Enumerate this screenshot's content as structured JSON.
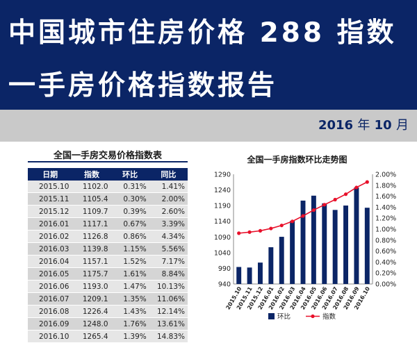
{
  "header": {
    "title_line1": "中国城市住房价格 288 指数",
    "title_line2": "一手房价格指数报告",
    "date_year": "2016",
    "date_year_unit": "年",
    "date_month": "10",
    "date_month_unit": "月"
  },
  "table": {
    "title": "全国一手房交易价格指数表",
    "headers": [
      "日期",
      "指数",
      "环比",
      "同比"
    ],
    "rows": [
      [
        "2015.10",
        "1102.0",
        "0.31%",
        "1.41%"
      ],
      [
        "2015.11",
        "1105.4",
        "0.30%",
        "2.00%"
      ],
      [
        "2015.12",
        "1109.7",
        "0.39%",
        "2.60%"
      ],
      [
        "2016.01",
        "1117.1",
        "0.67%",
        "3.39%"
      ],
      [
        "2016.02",
        "1126.8",
        "0.86%",
        "4.34%"
      ],
      [
        "2016.03",
        "1139.8",
        "1.15%",
        "5.56%"
      ],
      [
        "2016.04",
        "1157.1",
        "1.52%",
        "7.17%"
      ],
      [
        "2016.05",
        "1175.7",
        "1.61%",
        "8.84%"
      ],
      [
        "2016.06",
        "1193.0",
        "1.47%",
        "10.13%"
      ],
      [
        "2016.07",
        "1209.1",
        "1.35%",
        "11.06%"
      ],
      [
        "2016.08",
        "1226.4",
        "1.43%",
        "12.14%"
      ],
      [
        "2016.09",
        "1248.0",
        "1.76%",
        "13.61%"
      ],
      [
        "2016.10",
        "1265.4",
        "1.39%",
        "14.83%"
      ]
    ]
  },
  "chart_data": {
    "type": "bar",
    "title": "全国一手房指数环比走势图",
    "categories": [
      "2015.10",
      "2015.11",
      "2015.12",
      "2016.01",
      "2016.02",
      "2016.03",
      "2016.04",
      "2016.05",
      "2016.06",
      "2016.07",
      "2016.08",
      "2016.09",
      "2016.10"
    ],
    "series": [
      {
        "name": "环比",
        "kind": "bar",
        "axis": "right",
        "color": "#0b2566",
        "values": [
          0.31,
          0.3,
          0.39,
          0.67,
          0.86,
          1.15,
          1.52,
          1.61,
          1.47,
          1.35,
          1.43,
          1.76,
          1.39
        ]
      },
      {
        "name": "指数",
        "kind": "line",
        "axis": "left",
        "color": "#e8102a",
        "values": [
          1102.0,
          1105.4,
          1109.7,
          1117.1,
          1126.8,
          1139.8,
          1157.1,
          1175.7,
          1193.0,
          1209.1,
          1226.4,
          1248.0,
          1265.4
        ]
      }
    ],
    "left_axis": {
      "min": 940,
      "max": 1290,
      "ticks": [
        "940",
        "990",
        "1040",
        "1090",
        "1140",
        "1190",
        "1240",
        "1290"
      ]
    },
    "right_axis": {
      "min": 0,
      "max": 2.0,
      "ticks": [
        "0.00%",
        "0.20%",
        "0.40%",
        "0.60%",
        "0.80%",
        "1.00%",
        "1.20%",
        "1.40%",
        "1.60%",
        "1.80%",
        "2.00%"
      ]
    },
    "grid": false,
    "legend_position": "bottom"
  }
}
